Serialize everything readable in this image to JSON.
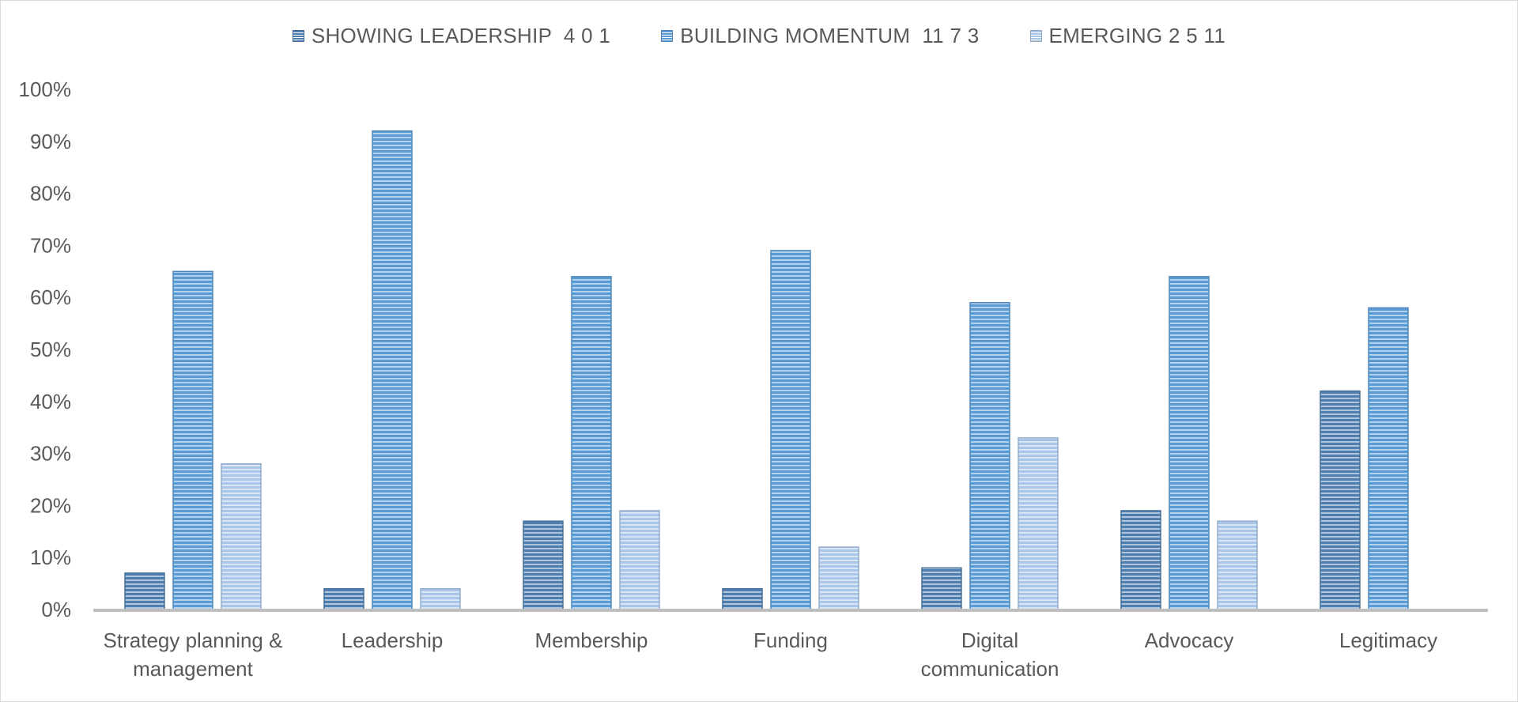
{
  "chart_data": {
    "type": "bar",
    "categories": [
      [
        "Strategy planning &",
        "management"
      ],
      [
        "Leadership"
      ],
      [
        "Membership"
      ],
      [
        "Funding"
      ],
      [
        "Digital",
        "communication"
      ],
      [
        "Advocacy"
      ],
      [
        "Legitimacy"
      ]
    ],
    "series": [
      {
        "name": "SHOWING LEADERSHIP  4 0 1",
        "color": "#4f7fb0",
        "values": [
          7,
          4,
          17,
          4,
          8,
          19,
          42
        ]
      },
      {
        "name": "BUILDING MOMENTUM  11 7 3",
        "color": "#5b9bd5",
        "values": [
          65,
          92,
          64,
          69,
          59,
          64,
          58
        ]
      },
      {
        "name": "EMERGING 2 5 11",
        "color": "#a9c5e8",
        "values": [
          28,
          4,
          19,
          12,
          33,
          17,
          null
        ]
      }
    ],
    "y_ticks": [
      "0%",
      "10%",
      "20%",
      "30%",
      "40%",
      "50%",
      "60%",
      "70%",
      "80%",
      "90%",
      "100%"
    ],
    "ylim": [
      0,
      100
    ],
    "grid": false,
    "legend_position": "top-center",
    "bar_pattern": "horizontal-stripes"
  }
}
